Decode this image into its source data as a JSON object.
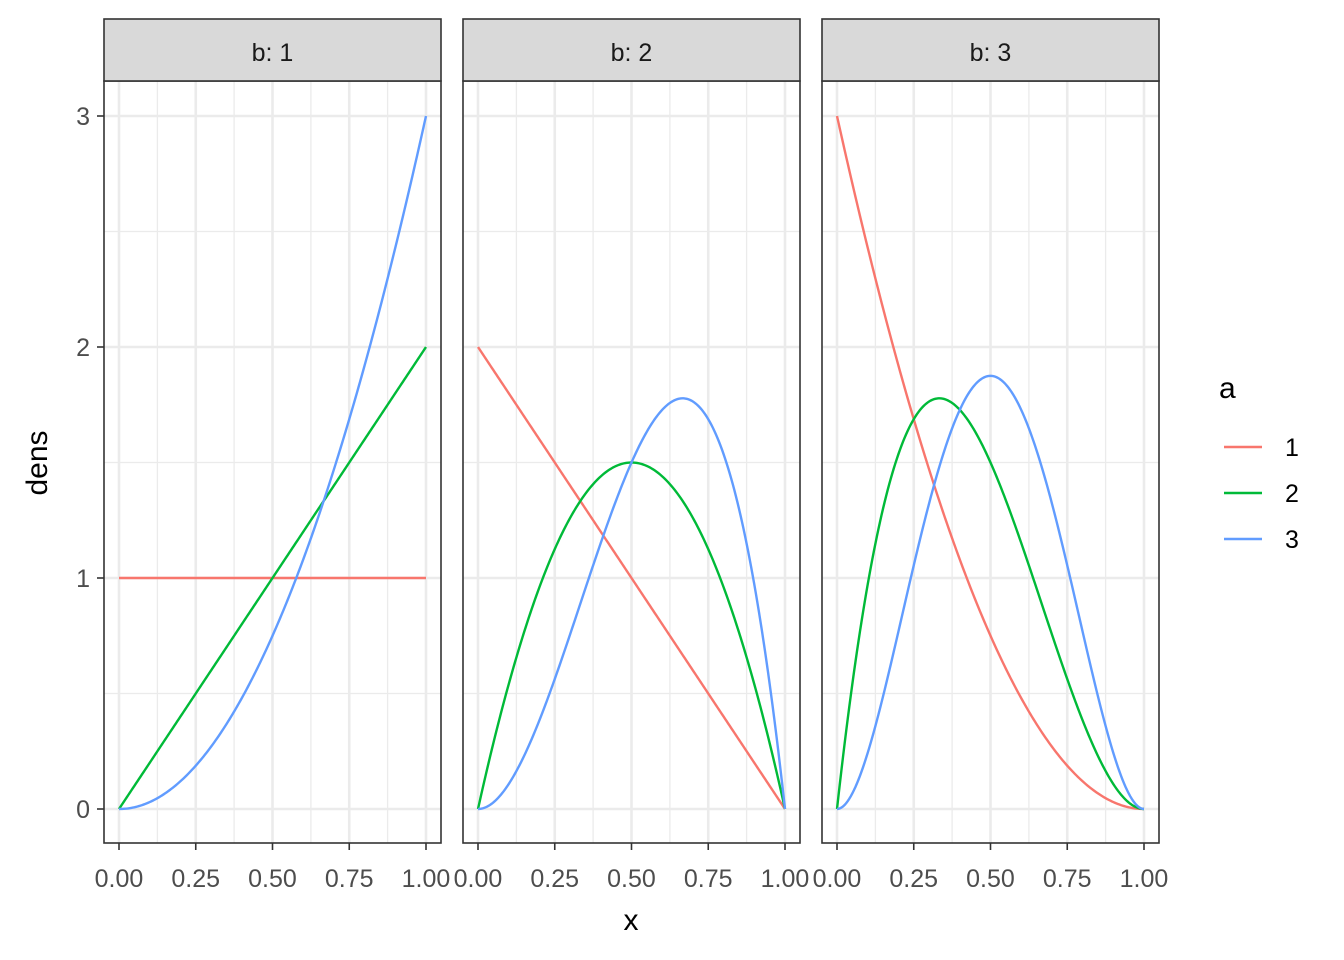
{
  "chart_data": {
    "type": "line",
    "xlabel": "x",
    "ylabel": "dens",
    "xlim": [
      0,
      1
    ],
    "ylim": [
      0,
      3
    ],
    "x_ticks": [
      "0.00",
      "0.25",
      "0.50",
      "0.75",
      "1.00"
    ],
    "y_ticks": [
      "0",
      "1",
      "2",
      "3"
    ],
    "legend": {
      "title": "a",
      "placement": "right",
      "entries": [
        "1",
        "2",
        "3"
      ]
    },
    "colors": {
      "1": "#F8766D",
      "2": "#00BA38",
      "3": "#619CFF"
    },
    "grid": true,
    "panels": [
      {
        "strip": "b: 1",
        "series": [
          {
            "name": "1",
            "x": [
              0,
              0.25,
              0.5,
              0.75,
              1
            ],
            "y": [
              1,
              1,
              1,
              1,
              1
            ]
          },
          {
            "name": "2",
            "x": [
              0,
              0.25,
              0.5,
              0.75,
              1
            ],
            "y": [
              0,
              0.5,
              1,
              1.5,
              2
            ]
          },
          {
            "name": "3",
            "x": [
              0,
              0.25,
              0.5,
              0.75,
              1
            ],
            "y": [
              0,
              0.19,
              0.75,
              1.69,
              3
            ]
          }
        ]
      },
      {
        "strip": "b: 2",
        "series": [
          {
            "name": "1",
            "x": [
              0,
              0.25,
              0.5,
              0.75,
              1
            ],
            "y": [
              2,
              1.5,
              1,
              0.5,
              0
            ]
          },
          {
            "name": "2",
            "x": [
              0,
              0.25,
              0.5,
              0.75,
              1
            ],
            "y": [
              0,
              1.12,
              1.5,
              1.12,
              0
            ]
          },
          {
            "name": "3",
            "x": [
              0,
              0.25,
              0.5,
              0.67,
              0.75,
              1
            ],
            "y": [
              0,
              0.56,
              1.5,
              1.78,
              1.69,
              0
            ]
          }
        ]
      },
      {
        "strip": "b: 3",
        "series": [
          {
            "name": "1",
            "x": [
              0,
              0.25,
              0.5,
              0.75,
              1
            ],
            "y": [
              3,
              1.69,
              0.75,
              0.19,
              0
            ]
          },
          {
            "name": "2",
            "x": [
              0,
              0.25,
              0.33,
              0.5,
              0.75,
              1
            ],
            "y": [
              0,
              1.69,
              1.78,
              1.5,
              0.56,
              0
            ]
          },
          {
            "name": "3",
            "x": [
              0,
              0.25,
              0.5,
              0.75,
              1
            ],
            "y": [
              0,
              1.05,
              1.88,
              1.05,
              0
            ]
          }
        ]
      }
    ]
  }
}
